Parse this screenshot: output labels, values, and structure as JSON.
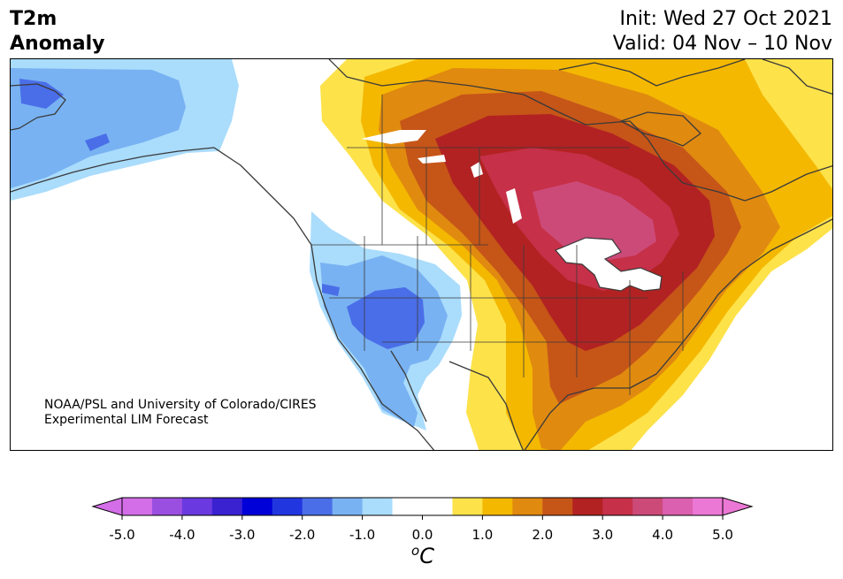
{
  "header": {
    "variable": "T2m",
    "product": "Anomaly",
    "init": "Init: Wed 27 Oct 2021",
    "valid": "Valid: 04 Nov – 10 Nov"
  },
  "credit": {
    "line1": "NOAA/PSL and University of Colorado/CIRES",
    "line2": "Experimental LIM Forecast"
  },
  "colorbar": {
    "unit_base": "C",
    "unit_sup": "o",
    "ticks": [
      "-5.0",
      "-4.0",
      "-3.0",
      "-2.0",
      "-1.0",
      "0.0",
      "1.0",
      "2.0",
      "3.0",
      "4.0",
      "5.0"
    ],
    "colors": [
      "#d46ee8",
      "#9b4fe0",
      "#6a3ae0",
      "#3a22d0",
      "#0000d8",
      "#2236e0",
      "#4a6ee8",
      "#78b2f2",
      "#aadcfc",
      "#ffffff",
      "#ffffff",
      "#fde24a",
      "#f4b800",
      "#e08a10",
      "#c65518",
      "#b22222",
      "#c63048",
      "#cc4a78",
      "#dc60b0",
      "#ec78d6"
    ],
    "under_color": "#d46ee8",
    "over_color": "#ec78d6"
  },
  "map": {
    "projection": "North America",
    "colors": {
      "neg1": "#aadcfc",
      "neg15": "#78b2f2",
      "neg2": "#4a6ee8",
      "pos05": "#fde24a",
      "pos1": "#f4b800",
      "pos15": "#e08a10",
      "pos2": "#c65518",
      "pos25": "#b22222",
      "pos3": "#c63048",
      "pos35": "#cc4a78",
      "coast": "#3a3a3a"
    }
  }
}
